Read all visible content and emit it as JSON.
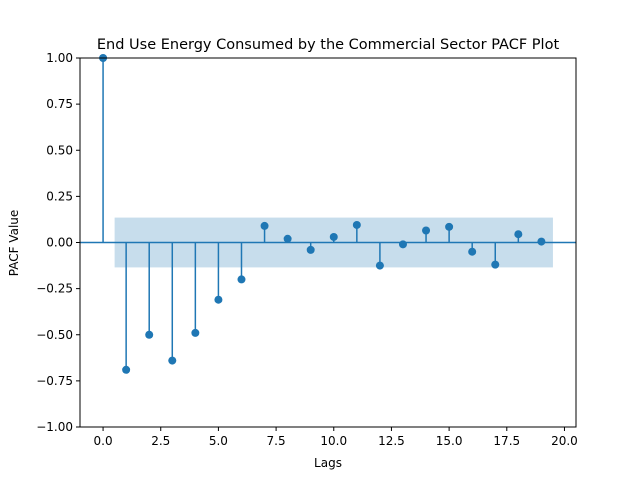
{
  "chart_data": {
    "type": "stem",
    "title": "End Use Energy Consumed by the Commercial Sector PACF Plot",
    "xlabel": "Lags",
    "ylabel": "PACF Value",
    "xlim": [
      -1.0,
      20.5
    ],
    "ylim": [
      -1.0,
      1.0
    ],
    "xticks": [
      0.0,
      2.5,
      5.0,
      7.5,
      10.0,
      12.5,
      15.0,
      17.5,
      20.0
    ],
    "xtick_labels": [
      "0.0",
      "2.5",
      "5.0",
      "7.5",
      "10.0",
      "12.5",
      "15.0",
      "17.5",
      "20.0"
    ],
    "yticks": [
      -1.0,
      -0.75,
      -0.5,
      -0.25,
      0.0,
      0.25,
      0.5,
      0.75,
      1.0
    ],
    "ytick_labels": [
      "−1.00",
      "−0.75",
      "−0.50",
      "−0.25",
      "0.00",
      "0.25",
      "0.50",
      "0.75",
      "1.00"
    ],
    "lags": [
      0,
      1,
      2,
      3,
      4,
      5,
      6,
      7,
      8,
      9,
      10,
      11,
      12,
      13,
      14,
      15,
      16,
      17,
      18,
      19
    ],
    "values": [
      1.0,
      -0.69,
      -0.5,
      -0.64,
      -0.49,
      -0.31,
      -0.2,
      0.09,
      0.02,
      -0.04,
      0.03,
      0.095,
      -0.125,
      -0.01,
      0.065,
      0.085,
      -0.05,
      -0.12,
      0.045,
      0.005
    ],
    "confidence_band": {
      "x_range": [
        0.5,
        19.5
      ],
      "lower": -0.135,
      "upper": 0.135
    },
    "grid": false,
    "colors": {
      "stem": "#1f77b4",
      "band": "#1f77b4",
      "zero_line": "#1f77b4"
    }
  }
}
